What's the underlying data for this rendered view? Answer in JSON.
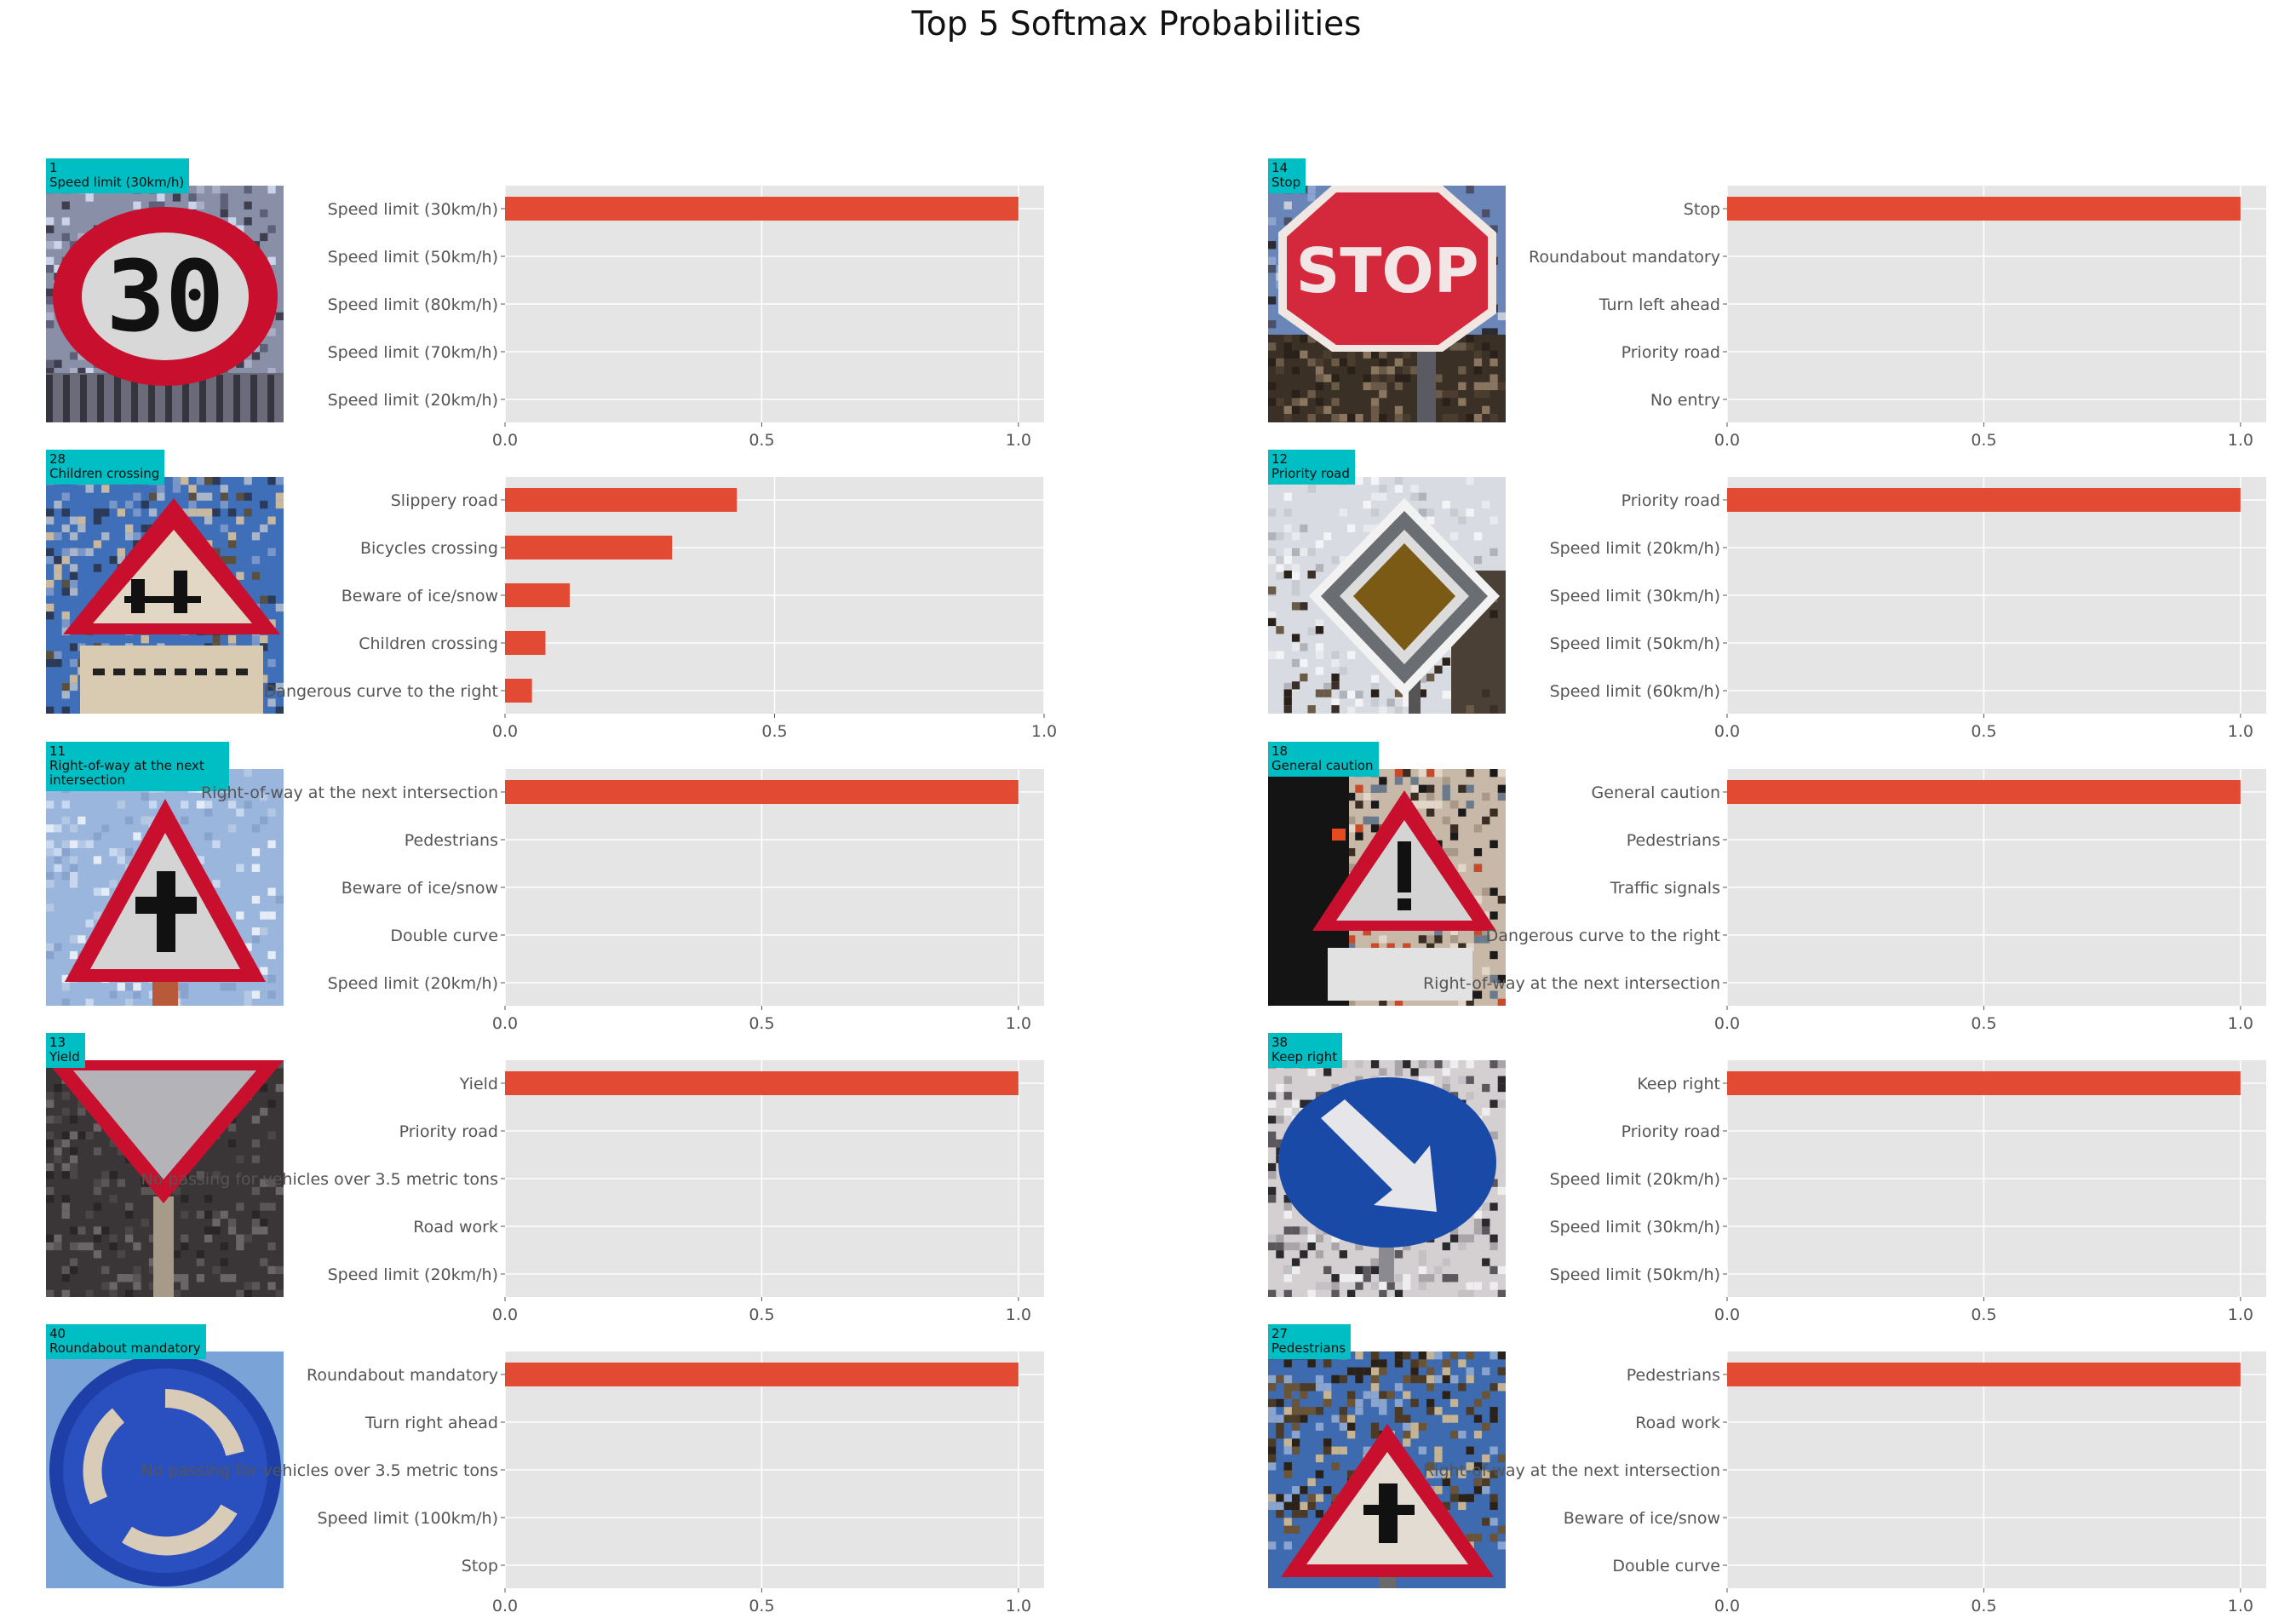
{
  "title": "Top 5 Softmax Probabilities",
  "colors": {
    "bar": "#e24a33",
    "axes_bg": "#e5e5e5",
    "grid": "#ffffff",
    "tag_bg": "#00bfc4",
    "tick_text": "#555555"
  },
  "chart_data": [
    {
      "type": "bar",
      "orientation": "horizontal",
      "image": "speed-limit-30-sign",
      "tag": {
        "id": "1",
        "name": "Speed limit (30km/h)"
      },
      "categories": [
        "Speed limit (30km/h)",
        "Speed limit (50km/h)",
        "Speed limit (80km/h)",
        "Speed limit (70km/h)",
        "Speed limit (20km/h)"
      ],
      "values": [
        1.0,
        0.0,
        0.0,
        0.0,
        0.0
      ],
      "xlim": [
        0,
        1.05
      ],
      "xticks": [
        "0.0",
        "0.5",
        "1.0"
      ]
    },
    {
      "type": "bar",
      "orientation": "horizontal",
      "image": "stop-sign",
      "tag": {
        "id": "14",
        "name": "Stop"
      },
      "categories": [
        "Stop",
        "Roundabout mandatory",
        "Turn left ahead",
        "Priority road",
        "No entry"
      ],
      "values": [
        1.0,
        0.0,
        0.0,
        0.0,
        0.0
      ],
      "xlim": [
        0,
        1.05
      ],
      "xticks": [
        "0.0",
        "0.5",
        "1.0"
      ]
    },
    {
      "type": "bar",
      "orientation": "horizontal",
      "image": "children-crossing-sign",
      "tag": {
        "id": "28",
        "name": "Children crossing"
      },
      "categories": [
        "Slippery road",
        "Bicycles crossing",
        "Beware of ice/snow",
        "Children crossing",
        "Dangerous curve to the right"
      ],
      "values": [
        0.43,
        0.31,
        0.12,
        0.075,
        0.05
      ],
      "xlim": [
        0,
        1.0
      ],
      "xticks": [
        "0.0",
        "0.5",
        "1.0"
      ]
    },
    {
      "type": "bar",
      "orientation": "horizontal",
      "image": "priority-road-sign",
      "tag": {
        "id": "12",
        "name": "Priority road"
      },
      "categories": [
        "Priority road",
        "Speed limit (20km/h)",
        "Speed limit (30km/h)",
        "Speed limit (50km/h)",
        "Speed limit (60km/h)"
      ],
      "values": [
        1.0,
        0.0,
        0.0,
        0.0,
        0.0
      ],
      "xlim": [
        0,
        1.05
      ],
      "xticks": [
        "0.0",
        "0.5",
        "1.0"
      ]
    },
    {
      "type": "bar",
      "orientation": "horizontal",
      "image": "right-of-way-sign",
      "tag": {
        "id": "11",
        "name": "Right-of-way at the next intersection"
      },
      "categories": [
        "Right-of-way at the next intersection",
        "Pedestrians",
        "Beware of ice/snow",
        "Double curve",
        "Speed limit (20km/h)"
      ],
      "values": [
        1.0,
        0.0,
        0.0,
        0.0,
        0.0
      ],
      "xlim": [
        0,
        1.05
      ],
      "xticks": [
        "0.0",
        "0.5",
        "1.0"
      ]
    },
    {
      "type": "bar",
      "orientation": "horizontal",
      "image": "general-caution-sign",
      "tag": {
        "id": "18",
        "name": "General caution"
      },
      "categories": [
        "General caution",
        "Pedestrians",
        "Traffic signals",
        "Dangerous curve to the right",
        "Right-of-way at the next intersection"
      ],
      "values": [
        1.0,
        0.0,
        0.0,
        0.0,
        0.0
      ],
      "xlim": [
        0,
        1.05
      ],
      "xticks": [
        "0.0",
        "0.5",
        "1.0"
      ]
    },
    {
      "type": "bar",
      "orientation": "horizontal",
      "image": "yield-sign",
      "tag": {
        "id": "13",
        "name": "Yield"
      },
      "categories": [
        "Yield",
        "Priority road",
        "No passing for vehicles over 3.5 metric tons",
        "Road work",
        "Speed limit (20km/h)"
      ],
      "values": [
        1.0,
        0.0,
        0.0,
        0.0,
        0.0
      ],
      "xlim": [
        0,
        1.05
      ],
      "xticks": [
        "0.0",
        "0.5",
        "1.0"
      ]
    },
    {
      "type": "bar",
      "orientation": "horizontal",
      "image": "keep-right-sign",
      "tag": {
        "id": "38",
        "name": "Keep right"
      },
      "categories": [
        "Keep right",
        "Priority road",
        "Speed limit (20km/h)",
        "Speed limit (30km/h)",
        "Speed limit (50km/h)"
      ],
      "values": [
        1.0,
        0.0,
        0.0,
        0.0,
        0.0
      ],
      "xlim": [
        0,
        1.05
      ],
      "xticks": [
        "0.0",
        "0.5",
        "1.0"
      ]
    },
    {
      "type": "bar",
      "orientation": "horizontal",
      "image": "roundabout-mandatory-sign",
      "tag": {
        "id": "40",
        "name": "Roundabout mandatory"
      },
      "categories": [
        "Roundabout mandatory",
        "Turn right ahead",
        "No passing for vehicles over 3.5 metric tons",
        "Speed limit (100km/h)",
        "Stop"
      ],
      "values": [
        1.0,
        0.0,
        0.0,
        0.0,
        0.0
      ],
      "xlim": [
        0,
        1.05
      ],
      "xticks": [
        "0.0",
        "0.5",
        "1.0"
      ]
    },
    {
      "type": "bar",
      "orientation": "horizontal",
      "image": "pedestrians-sign",
      "tag": {
        "id": "27",
        "name": "Pedestrians"
      },
      "categories": [
        "Pedestrians",
        "Road work",
        "Right-of-way at the next intersection",
        "Beware of ice/snow",
        "Double curve"
      ],
      "values": [
        1.0,
        0.0,
        0.0,
        0.0,
        0.0
      ],
      "xlim": [
        0,
        1.05
      ],
      "xticks": [
        "0.0",
        "0.5",
        "1.0"
      ]
    }
  ]
}
